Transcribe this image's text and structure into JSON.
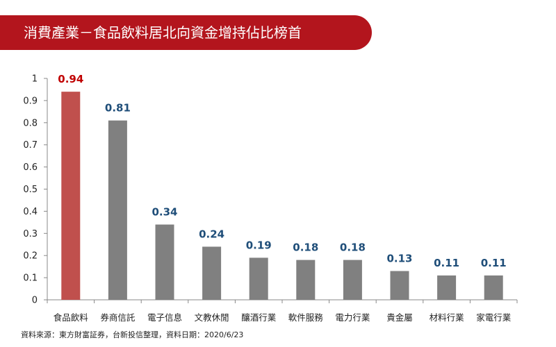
{
  "title": "消費產業－食品飲料居北向資金增持佔比榜首",
  "source": "資料來源：東方財富証券，台新投信整理，資料日期：2020/6/23",
  "colors": {
    "title_bg": "#b3151d",
    "highlight_bar": "#c0504d",
    "bar": "#808080",
    "highlight_label": "#c00000",
    "label": "#1f4e79",
    "axis": "#888888"
  },
  "chart_data": {
    "type": "bar",
    "categories": [
      "食品飲料",
      "券商信託",
      "電子信息",
      "文教休閒",
      "釀酒行業",
      "軟件服務",
      "電力行業",
      "貴金屬",
      "材料行業",
      "家電行業"
    ],
    "values": [
      0.94,
      0.81,
      0.34,
      0.24,
      0.19,
      0.18,
      0.18,
      0.13,
      0.11,
      0.11
    ],
    "value_labels": [
      "0.94",
      "0.81",
      "0.34",
      "0.24",
      "0.19",
      "0.18",
      "0.18",
      "0.13",
      "0.11",
      "0.11"
    ],
    "y_ticks": [
      "0",
      "0.1",
      "0.2",
      "0.3",
      "0.4",
      "0.5",
      "0.6",
      "0.7",
      "0.8",
      "0.9",
      "1"
    ],
    "ylim": [
      0,
      1
    ],
    "highlight_index": 0,
    "grid": false,
    "legend": "none"
  }
}
